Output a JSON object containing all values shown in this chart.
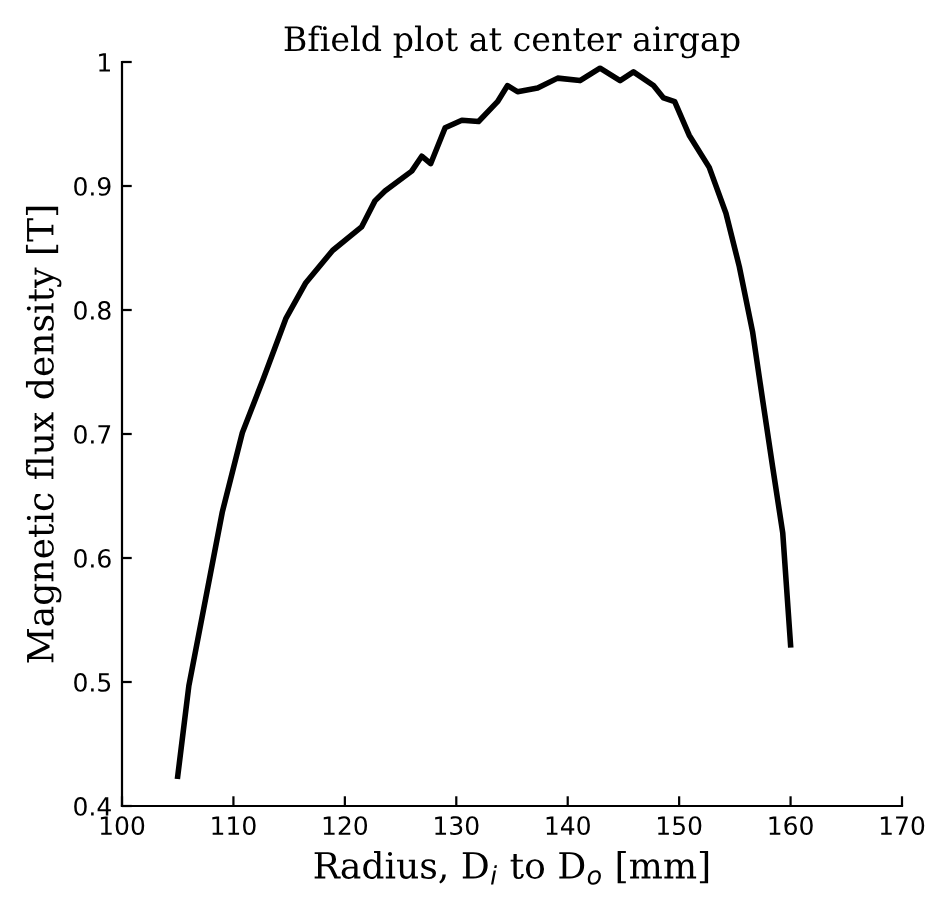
{
  "chart_data": {
    "type": "line",
    "title": "Bfield plot at center airgap",
    "xlabel": "Radius, D$_{i}$ to D$_{o}$ [mm]",
    "ylabel": "Magnetic flux density [T]",
    "x": [
      105,
      106,
      107.5,
      109,
      110.8,
      112.7,
      114.7,
      116.5,
      118.9,
      121.5,
      122.7,
      123.6,
      126,
      126.9,
      127.7,
      129,
      130.5,
      132,
      133.7,
      134.6,
      135.5,
      137.3,
      139.1,
      141.1,
      142.9,
      144.7,
      145.9,
      147.7,
      148.6,
      149.6,
      150.9,
      152.7,
      154.2,
      155.4,
      156.6,
      157.5,
      158.4,
      159.3,
      160
    ],
    "series": [
      {
        "color": "#000000",
        "values": [
          0.424,
          0.497,
          0.567,
          0.637,
          0.701,
          0.745,
          0.793,
          0.822,
          0.848,
          0.867,
          0.888,
          0.896,
          0.912,
          0.924,
          0.918,
          0.947,
          0.953,
          0.952,
          0.968,
          0.981,
          0.976,
          0.979,
          0.987,
          0.985,
          0.995,
          0.985,
          0.992,
          0.981,
          0.971,
          0.968,
          0.941,
          0.915,
          0.878,
          0.835,
          0.782,
          0.727,
          0.673,
          0.62,
          0.53
        ]
      }
    ],
    "xlim": [
      100,
      170
    ],
    "xticks": [
      100,
      110,
      120,
      130,
      140,
      150,
      160,
      170
    ],
    "ylim": [
      0.4,
      1
    ],
    "yticks": [
      0.4,
      0.5,
      0.6,
      0.7,
      0.8,
      0.9,
      1
    ],
    "grid": false,
    "legend": false,
    "marker": "none",
    "line_style": "solid"
  }
}
